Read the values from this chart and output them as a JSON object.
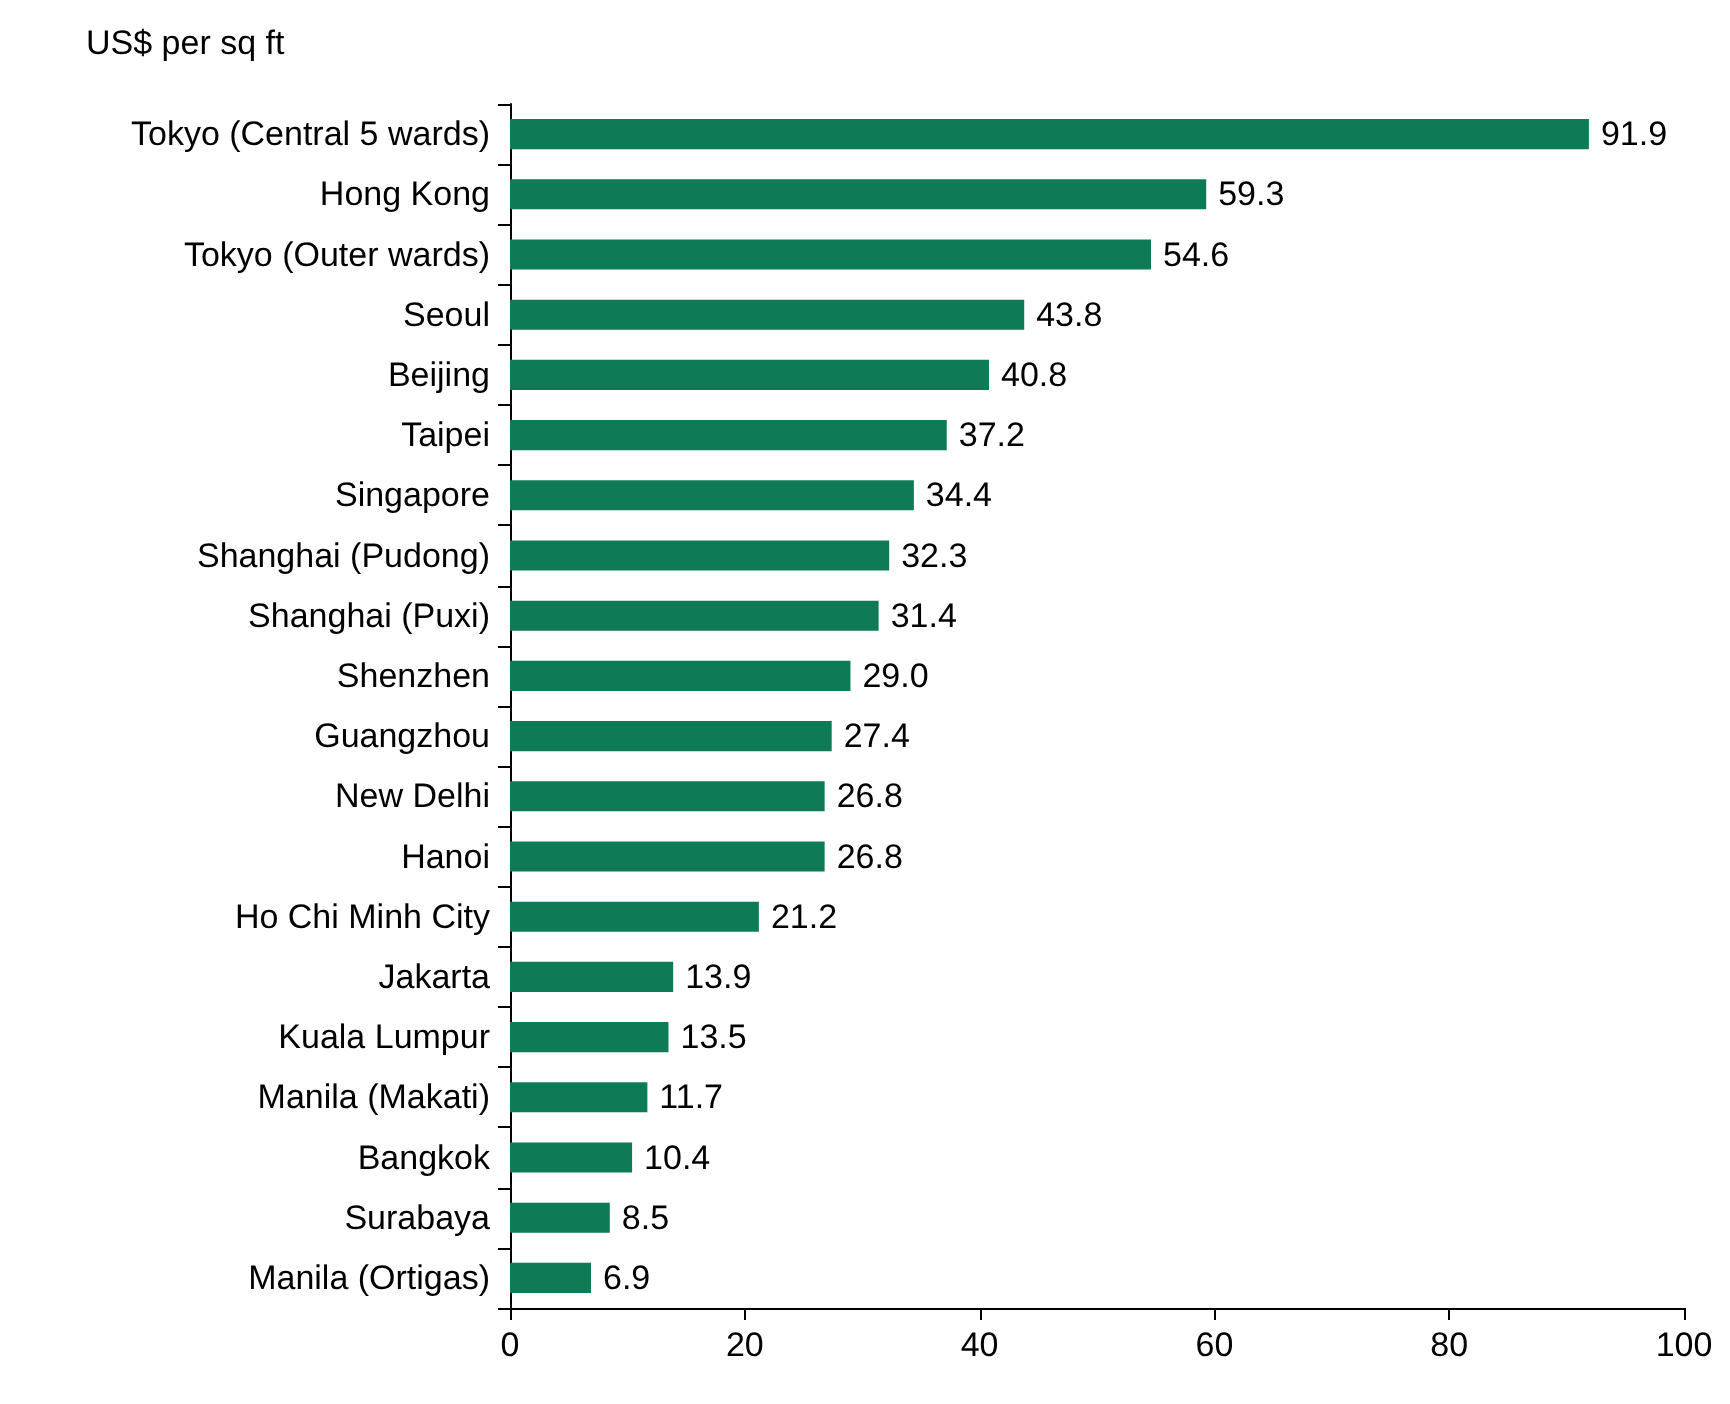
{
  "chart_data": {
    "type": "bar",
    "orientation": "horizontal",
    "title": "US$ per sq ft",
    "categories": [
      "Tokyo (Central 5 wards)",
      "Hong Kong",
      "Tokyo (Outer wards)",
      "Seoul",
      "Beijing",
      "Taipei",
      "Singapore",
      "Shanghai (Pudong)",
      "Shanghai (Puxi)",
      "Shenzhen",
      "Guangzhou",
      "New Delhi",
      "Hanoi",
      "Ho Chi Minh City",
      "Jakarta",
      "Kuala Lumpur",
      "Manila (Makati)",
      "Bangkok",
      "Surabaya",
      "Manila (Ortigas)"
    ],
    "values": [
      91.9,
      59.3,
      54.6,
      43.8,
      40.8,
      37.2,
      34.4,
      32.3,
      31.4,
      29.0,
      27.4,
      26.8,
      26.8,
      21.2,
      13.9,
      13.5,
      11.7,
      10.4,
      8.5,
      6.9
    ],
    "value_labels": [
      "91.9",
      "59.3",
      "54.6",
      "43.8",
      "40.8",
      "37.2",
      "34.4",
      "32.3",
      "31.4",
      "29.0",
      "27.4",
      "26.8",
      "26.8",
      "21.2",
      "13.9",
      "13.5",
      "11.7",
      "10.4",
      "8.5",
      "6.9"
    ],
    "color": "#0e7a56",
    "xlim": [
      0,
      100
    ],
    "xticks": [
      0,
      20,
      40,
      60,
      80,
      100
    ],
    "grid": false
  }
}
